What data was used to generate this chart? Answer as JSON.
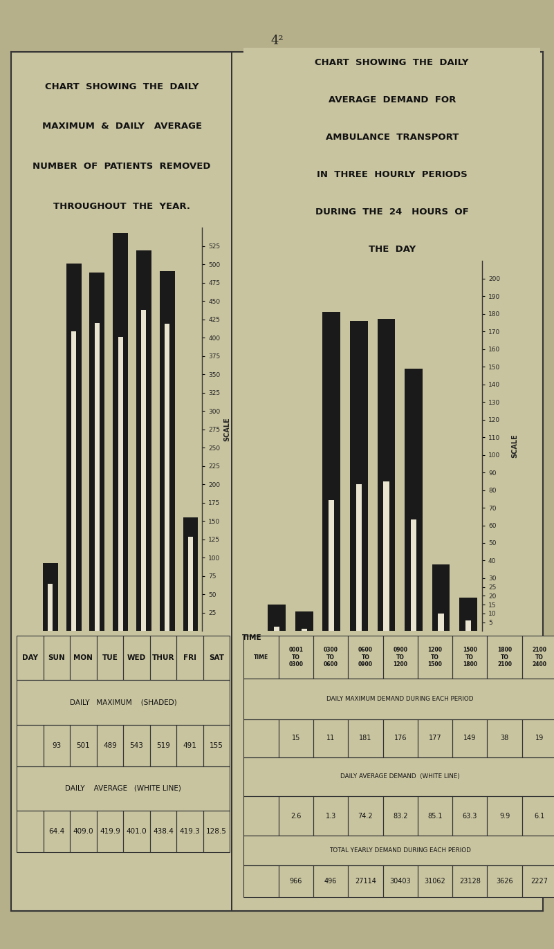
{
  "bg_color": "#b5b08a",
  "chart_bg": "#c8c4a0",
  "bar_color": "#1a1a1a",
  "white_line_color": "#e8e4d0",
  "border_color": "#333333",
  "page_number": "4²",
  "left_title_lines": [
    "CHART  SHOWING  THE  DAILY",
    "MAXIMUM  &  DAILY   AVERAGE",
    "NUMBER  OF  PATIENTS  REMOVED",
    "THROUGHOUT  THE  YEAR."
  ],
  "right_title_lines": [
    "CHART  SHOWING  THE  DAILY",
    "AVERAGE  DEMAND  FOR",
    "AMBULANCE  TRANSPORT",
    "IN  THREE  HOURLY  PERIODS",
    "DURING  THE  24   HOURS  OF",
    "THE  DAY"
  ],
  "left_days": [
    "SUN",
    "MON",
    "TUE",
    "WED",
    "THUR",
    "FRI",
    "SAT"
  ],
  "left_max": [
    93,
    501,
    489,
    543,
    519,
    491,
    155
  ],
  "left_avg": [
    64.4,
    409.0,
    419.9,
    401.0,
    438.4,
    419.3,
    128.5
  ],
  "left_ylim": [
    0,
    550
  ],
  "left_yticks": [
    25,
    50,
    75,
    100,
    125,
    150,
    175,
    200,
    225,
    250,
    275,
    300,
    325,
    350,
    375,
    400,
    425,
    450,
    475,
    500,
    525
  ],
  "right_max": [
    15,
    11,
    181,
    176,
    177,
    149,
    38,
    19
  ],
  "right_avg": [
    2.6,
    1.3,
    74.2,
    83.2,
    85.1,
    63.3,
    9.9,
    6.1
  ],
  "right_ylim": [
    0,
    210
  ],
  "right_yticks": [
    5,
    10,
    15,
    20,
    25,
    30,
    40,
    50,
    60,
    70,
    80,
    90,
    100,
    110,
    120,
    130,
    140,
    150,
    160,
    170,
    180,
    190,
    200
  ],
  "right_yearly": [
    966,
    496,
    27114,
    30403,
    31062,
    23128,
    3626,
    2227
  ],
  "left_max_label": "DAILY   MAXIMUM    (SHADED)",
  "left_avg_label": "DAILY    AVERAGE   (WHITE LINE)",
  "right_max_label": "DAILY MAXIMUM DEMAND DURING EACH PERIOD",
  "right_avg_label": "DAILY AVERAGE DEMAND  (WHITE LINE)",
  "right_yearly_label": "TOTAL YEARLY DEMAND DURING EACH PERIOD"
}
